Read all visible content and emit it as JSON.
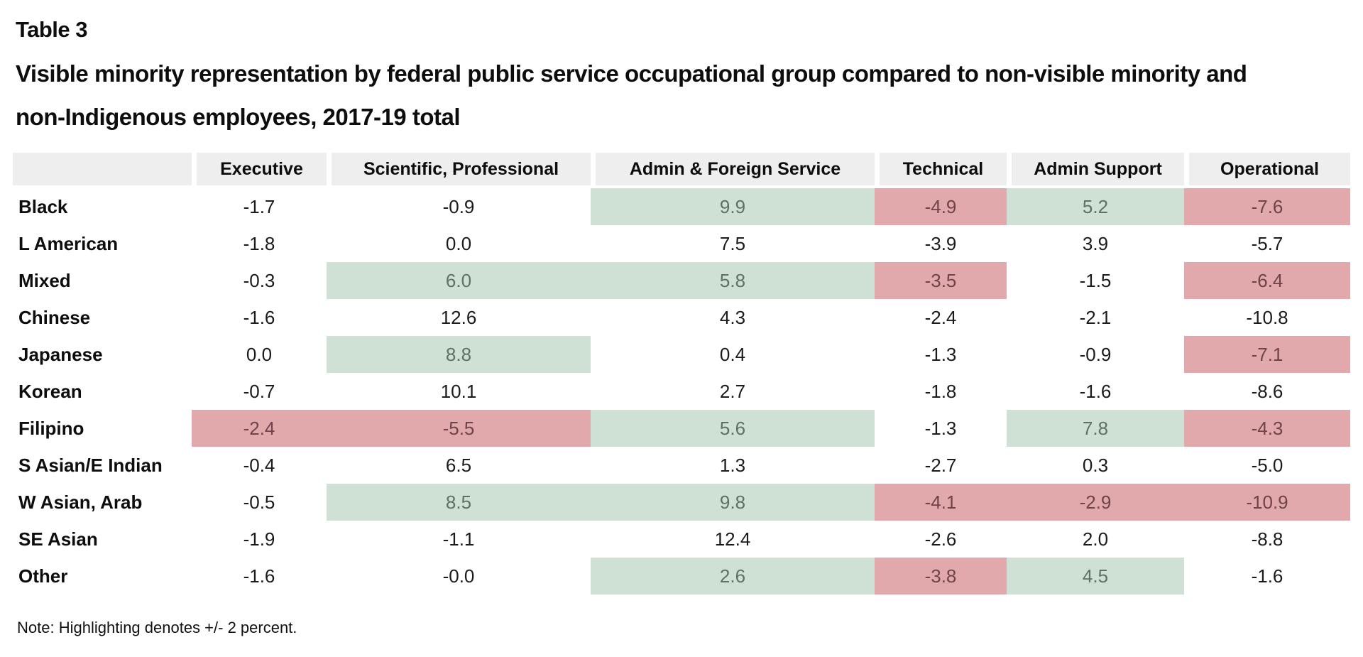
{
  "page": {
    "table_label": "Table 3",
    "title": "Visible minority representation by federal public service occupational group compared to non-visible minority and\nnon-Indigenous employees, 2017-19 total",
    "note": "Note: Highlighting denotes +/- 2 percent."
  },
  "colors": {
    "highlight_green": "#cfe0d4",
    "highlight_red": "#e2a9ac",
    "header_bg": "#eeeeee",
    "green_text": "#5f7165",
    "red_text": "#6f4348"
  },
  "table": {
    "columns": [
      "",
      "Executive",
      "Scientific, Professional",
      "Admin & Foreign Service",
      "Technical",
      "Admin Support",
      "Operational"
    ],
    "rows": [
      {
        "label": "Black",
        "cells": [
          {
            "v": "-1.7"
          },
          {
            "v": "-0.9"
          },
          {
            "v": "9.9",
            "h": "g"
          },
          {
            "v": "-4.9",
            "h": "r"
          },
          {
            "v": "5.2",
            "h": "g"
          },
          {
            "v": "-7.6",
            "h": "r"
          }
        ]
      },
      {
        "label": "L American",
        "cells": [
          {
            "v": "-1.8"
          },
          {
            "v": "0.0"
          },
          {
            "v": "7.5"
          },
          {
            "v": "-3.9"
          },
          {
            "v": "3.9"
          },
          {
            "v": "-5.7"
          }
        ]
      },
      {
        "label": "Mixed",
        "cells": [
          {
            "v": "-0.3"
          },
          {
            "v": "6.0",
            "h": "g"
          },
          {
            "v": "5.8",
            "h": "g"
          },
          {
            "v": "-3.5",
            "h": "r"
          },
          {
            "v": "-1.5"
          },
          {
            "v": "-6.4",
            "h": "r"
          }
        ]
      },
      {
        "label": "Chinese",
        "cells": [
          {
            "v": "-1.6"
          },
          {
            "v": "12.6"
          },
          {
            "v": "4.3"
          },
          {
            "v": "-2.4"
          },
          {
            "v": "-2.1"
          },
          {
            "v": "-10.8"
          }
        ]
      },
      {
        "label": "Japanese",
        "cells": [
          {
            "v": "0.0"
          },
          {
            "v": "8.8",
            "h": "g"
          },
          {
            "v": "0.4"
          },
          {
            "v": "-1.3"
          },
          {
            "v": "-0.9"
          },
          {
            "v": "-7.1",
            "h": "r"
          }
        ]
      },
      {
        "label": "Korean",
        "cells": [
          {
            "v": "-0.7"
          },
          {
            "v": "10.1"
          },
          {
            "v": "2.7"
          },
          {
            "v": "-1.8"
          },
          {
            "v": "-1.6"
          },
          {
            "v": "-8.6"
          }
        ]
      },
      {
        "label": "Filipino",
        "cells": [
          {
            "v": "-2.4",
            "h": "r"
          },
          {
            "v": "-5.5",
            "h": "r"
          },
          {
            "v": "5.6",
            "h": "g"
          },
          {
            "v": "-1.3"
          },
          {
            "v": "7.8",
            "h": "g"
          },
          {
            "v": "-4.3",
            "h": "r"
          }
        ]
      },
      {
        "label": "S Asian/E Indian",
        "cells": [
          {
            "v": "-0.4"
          },
          {
            "v": "6.5"
          },
          {
            "v": "1.3"
          },
          {
            "v": "-2.7"
          },
          {
            "v": "0.3"
          },
          {
            "v": "-5.0"
          }
        ]
      },
      {
        "label": "W Asian, Arab",
        "cells": [
          {
            "v": "-0.5"
          },
          {
            "v": "8.5",
            "h": "g"
          },
          {
            "v": "9.8",
            "h": "g"
          },
          {
            "v": "-4.1",
            "h": "r"
          },
          {
            "v": "-2.9",
            "h": "r"
          },
          {
            "v": "-10.9",
            "h": "r"
          }
        ]
      },
      {
        "label": "SE Asian",
        "cells": [
          {
            "v": "-1.9"
          },
          {
            "v": "-1.1"
          },
          {
            "v": "12.4"
          },
          {
            "v": "-2.6"
          },
          {
            "v": "2.0"
          },
          {
            "v": "-8.8"
          }
        ]
      },
      {
        "label": "Other",
        "cells": [
          {
            "v": "-1.6"
          },
          {
            "v": "-0.0"
          },
          {
            "v": "2.6",
            "h": "g"
          },
          {
            "v": "-3.8",
            "h": "r"
          },
          {
            "v": "4.5",
            "h": "g"
          },
          {
            "v": "-1.6"
          }
        ]
      }
    ]
  },
  "chart_data": {
    "type": "table",
    "title": "Table 3: Visible minority representation by federal public service occupational group compared to non-visible minority and non-Indigenous employees, 2017-19 total",
    "columns": [
      "Executive",
      "Scientific, Professional",
      "Admin & Foreign Service",
      "Technical",
      "Admin Support",
      "Operational"
    ],
    "rows": [
      {
        "group": "Black",
        "values": [
          -1.7,
          -0.9,
          9.9,
          -4.9,
          5.2,
          -7.6
        ],
        "highlight": [
          null,
          null,
          "green",
          "red",
          "green",
          "red"
        ]
      },
      {
        "group": "L American",
        "values": [
          -1.8,
          0.0,
          7.5,
          -3.9,
          3.9,
          -5.7
        ],
        "highlight": [
          null,
          null,
          null,
          null,
          null,
          null
        ]
      },
      {
        "group": "Mixed",
        "values": [
          -0.3,
          6.0,
          5.8,
          -3.5,
          -1.5,
          -6.4
        ],
        "highlight": [
          null,
          "green",
          "green",
          "red",
          null,
          "red"
        ]
      },
      {
        "group": "Chinese",
        "values": [
          -1.6,
          12.6,
          4.3,
          -2.4,
          -2.1,
          -10.8
        ],
        "highlight": [
          null,
          null,
          null,
          null,
          null,
          null
        ]
      },
      {
        "group": "Japanese",
        "values": [
          0.0,
          8.8,
          0.4,
          -1.3,
          -0.9,
          -7.1
        ],
        "highlight": [
          null,
          "green",
          null,
          null,
          null,
          "red"
        ]
      },
      {
        "group": "Korean",
        "values": [
          -0.7,
          10.1,
          2.7,
          -1.8,
          -1.6,
          -8.6
        ],
        "highlight": [
          null,
          null,
          null,
          null,
          null,
          null
        ]
      },
      {
        "group": "Filipino",
        "values": [
          -2.4,
          -5.5,
          5.6,
          -1.3,
          7.8,
          -4.3
        ],
        "highlight": [
          "red",
          "red",
          "green",
          null,
          "green",
          "red"
        ]
      },
      {
        "group": "S Asian/E Indian",
        "values": [
          -0.4,
          6.5,
          1.3,
          -2.7,
          0.3,
          -5.0
        ],
        "highlight": [
          null,
          null,
          null,
          null,
          null,
          null
        ]
      },
      {
        "group": "W Asian, Arab",
        "values": [
          -0.5,
          8.5,
          9.8,
          -4.1,
          -2.9,
          -10.9
        ],
        "highlight": [
          null,
          "green",
          "green",
          "red",
          "red",
          "red"
        ]
      },
      {
        "group": "SE Asian",
        "values": [
          -1.9,
          -1.1,
          12.4,
          -2.6,
          2.0,
          -8.8
        ],
        "highlight": [
          null,
          null,
          null,
          null,
          null,
          null
        ]
      },
      {
        "group": "Other",
        "values": [
          -1.6,
          -0.0,
          2.6,
          -3.8,
          4.5,
          -1.6
        ],
        "highlight": [
          null,
          null,
          "green",
          "red",
          "green",
          null
        ]
      }
    ],
    "note": "Note: Highlighting denotes +/- 2 percent.",
    "highlight_rule": "+/- 2 percent",
    "legend_position": "none",
    "grid": false
  }
}
